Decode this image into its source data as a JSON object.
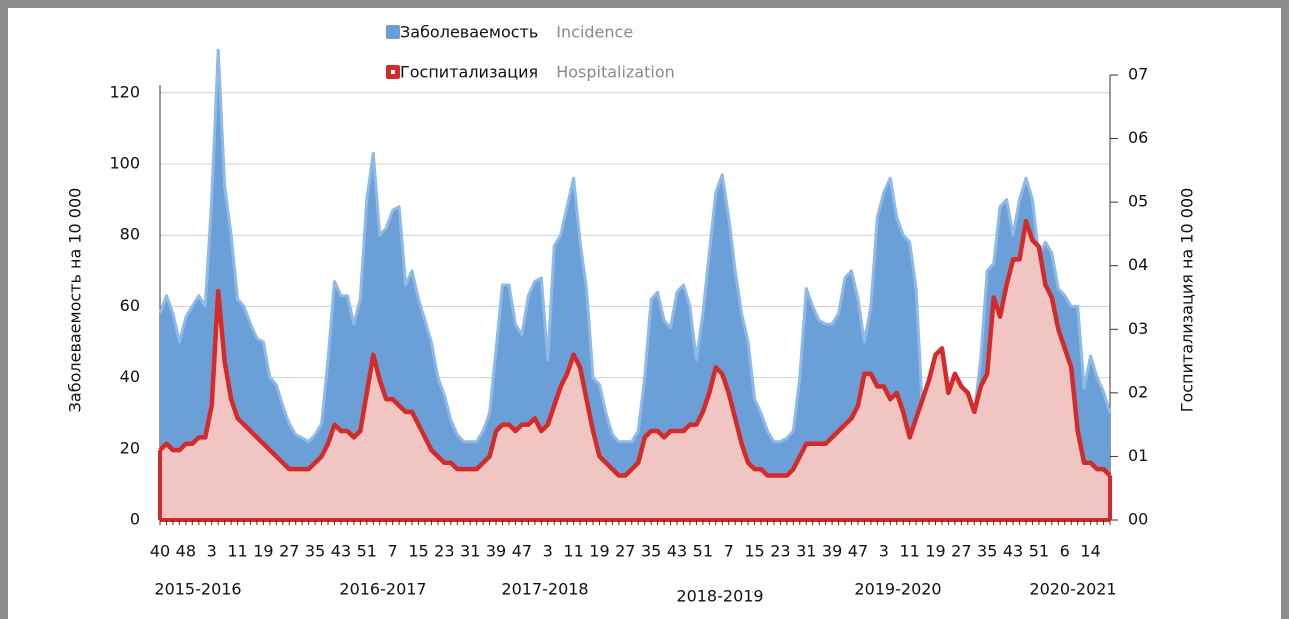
{
  "chart_data": {
    "type": "area",
    "y_label": "Заболеваемость на 10 000",
    "y2_label": "Госпитализация на 10 000",
    "categories": [
      "40",
      null,
      null,
      null,
      "48",
      null,
      null,
      null,
      "3",
      null,
      null,
      null,
      "11",
      null,
      null,
      null,
      "19",
      null,
      null,
      null,
      "27",
      null,
      null,
      null,
      "35",
      null,
      null,
      null,
      "43",
      null,
      null,
      null,
      "51",
      null,
      null,
      null,
      "7",
      null,
      null,
      null,
      "15",
      null,
      null,
      null,
      "23",
      null,
      null,
      null,
      "31",
      null,
      null,
      null,
      "39",
      null,
      null,
      null,
      "47",
      null,
      null,
      null,
      "3",
      null,
      null,
      null,
      "11",
      null,
      null,
      null,
      "19",
      null,
      null,
      null,
      "27",
      null,
      null,
      null,
      "35",
      null,
      null,
      null,
      "43",
      null,
      null,
      null,
      "51",
      null,
      null,
      null,
      "7",
      null,
      null,
      null,
      "15",
      null,
      null,
      null,
      "23",
      null,
      null,
      null,
      "31",
      null,
      null,
      null,
      "39",
      null,
      null,
      null,
      "47",
      null,
      null,
      null,
      "3",
      null,
      null,
      null,
      "11",
      null,
      null,
      null,
      "19",
      null,
      null,
      null,
      "27",
      null,
      null,
      null,
      "35",
      null,
      null,
      null,
      "43",
      null,
      null,
      null,
      "51",
      null,
      null,
      null,
      "6",
      null,
      null,
      null,
      "14",
      null,
      null,
      null
    ],
    "seasons": [
      "2015-2016",
      "2016-2017",
      "2017-2018",
      "2018-2019",
      "2019-2020",
      "2020-2021"
    ],
    "series": [
      {
        "name": "Заболеваемость",
        "name_en": "Incidence",
        "color": "#6a9fd8",
        "values": [
          58,
          63,
          58,
          50,
          57,
          60,
          63,
          60,
          90,
          132,
          94,
          80,
          62,
          60,
          55,
          51,
          50,
          40,
          38,
          32,
          27,
          24,
          23,
          22,
          24,
          27,
          45,
          67,
          63,
          63,
          55,
          62,
          90,
          103,
          80,
          82,
          87,
          88,
          66,
          70,
          62,
          56,
          50,
          40,
          35,
          28,
          24,
          22,
          22,
          22,
          25,
          30,
          48,
          66,
          66,
          55,
          52,
          63,
          67,
          68,
          45,
          77,
          80,
          88,
          96,
          78,
          65,
          40,
          38,
          30,
          24,
          22,
          22,
          22,
          25,
          40,
          62,
          64,
          56,
          54,
          64,
          66,
          60,
          45,
          58,
          75,
          92,
          97,
          85,
          70,
          58,
          50,
          34,
          30,
          25,
          22,
          22,
          23,
          25,
          40,
          65,
          60,
          56,
          55,
          55,
          58,
          68,
          70,
          62,
          50,
          60,
          85,
          92,
          96,
          85,
          80,
          78,
          65,
          30,
          28,
          30,
          30,
          30,
          30,
          30,
          30,
          30,
          45,
          70,
          72,
          88,
          90,
          80,
          90,
          96,
          90,
          74,
          78,
          75,
          65,
          63,
          60,
          60,
          37,
          46,
          40,
          36,
          30
        ]
      },
      {
        "name": "Госпитализация",
        "name_en": "Hospitalization",
        "color": "#d42a2a",
        "axis": "y2",
        "values": [
          0.011,
          0.012,
          0.011,
          0.011,
          0.012,
          0.012,
          0.013,
          0.013,
          0.018,
          0.036,
          0.025,
          0.019,
          0.016,
          0.015,
          0.014,
          0.013,
          0.012,
          0.011,
          0.01,
          0.009,
          0.008,
          0.008,
          0.008,
          0.008,
          0.009,
          0.01,
          0.012,
          0.015,
          0.014,
          0.014,
          0.013,
          0.014,
          0.02,
          0.026,
          0.022,
          0.019,
          0.019,
          0.018,
          0.017,
          0.017,
          0.015,
          0.013,
          0.011,
          0.01,
          0.009,
          0.009,
          0.008,
          0.008,
          0.008,
          0.008,
          0.009,
          0.01,
          0.014,
          0.015,
          0.015,
          0.014,
          0.015,
          0.015,
          0.016,
          0.014,
          0.015,
          0.018,
          0.021,
          0.023,
          0.026,
          0.024,
          0.019,
          0.014,
          0.01,
          0.009,
          0.008,
          0.007,
          0.007,
          0.008,
          0.009,
          0.013,
          0.014,
          0.014,
          0.013,
          0.014,
          0.014,
          0.014,
          0.015,
          0.015,
          0.017,
          0.02,
          0.024,
          0.023,
          0.02,
          0.016,
          0.012,
          0.009,
          0.008,
          0.008,
          0.007,
          0.007,
          0.007,
          0.007,
          0.008,
          0.01,
          0.012,
          0.012,
          0.012,
          0.012,
          0.013,
          0.014,
          0.015,
          0.016,
          0.018,
          0.023,
          0.023,
          0.021,
          0.021,
          0.019,
          0.02,
          0.017,
          0.013,
          0.016,
          0.019,
          0.022,
          0.026,
          0.027,
          0.02,
          0.023,
          0.021,
          0.02,
          0.017,
          0.021,
          0.023,
          0.035,
          0.032,
          0.037,
          0.041,
          0.041,
          0.047,
          0.044,
          0.043,
          0.037,
          0.035,
          0.03,
          0.027,
          0.024,
          0.014,
          0.009,
          0.009,
          0.008,
          0.008,
          0.007
        ]
      }
    ],
    "ylim": [
      0,
      125
    ],
    "yticks": [
      0,
      20,
      40,
      60,
      80,
      100,
      120
    ],
    "y2lim": [
      0,
      0.07
    ],
    "y2ticks": [
      {
        "value": 0,
        "label": "00"
      },
      {
        "value": 0.01,
        "label": "01"
      },
      {
        "value": 0.02,
        "label": "02"
      },
      {
        "value": 0.03,
        "label": "03"
      },
      {
        "value": 0.04,
        "label": "04"
      },
      {
        "value": 0.05,
        "label": "05"
      },
      {
        "value": 0.06,
        "label": "06"
      },
      {
        "value": 0.07,
        "label": "07"
      }
    ],
    "grid": true,
    "legend": "top"
  }
}
